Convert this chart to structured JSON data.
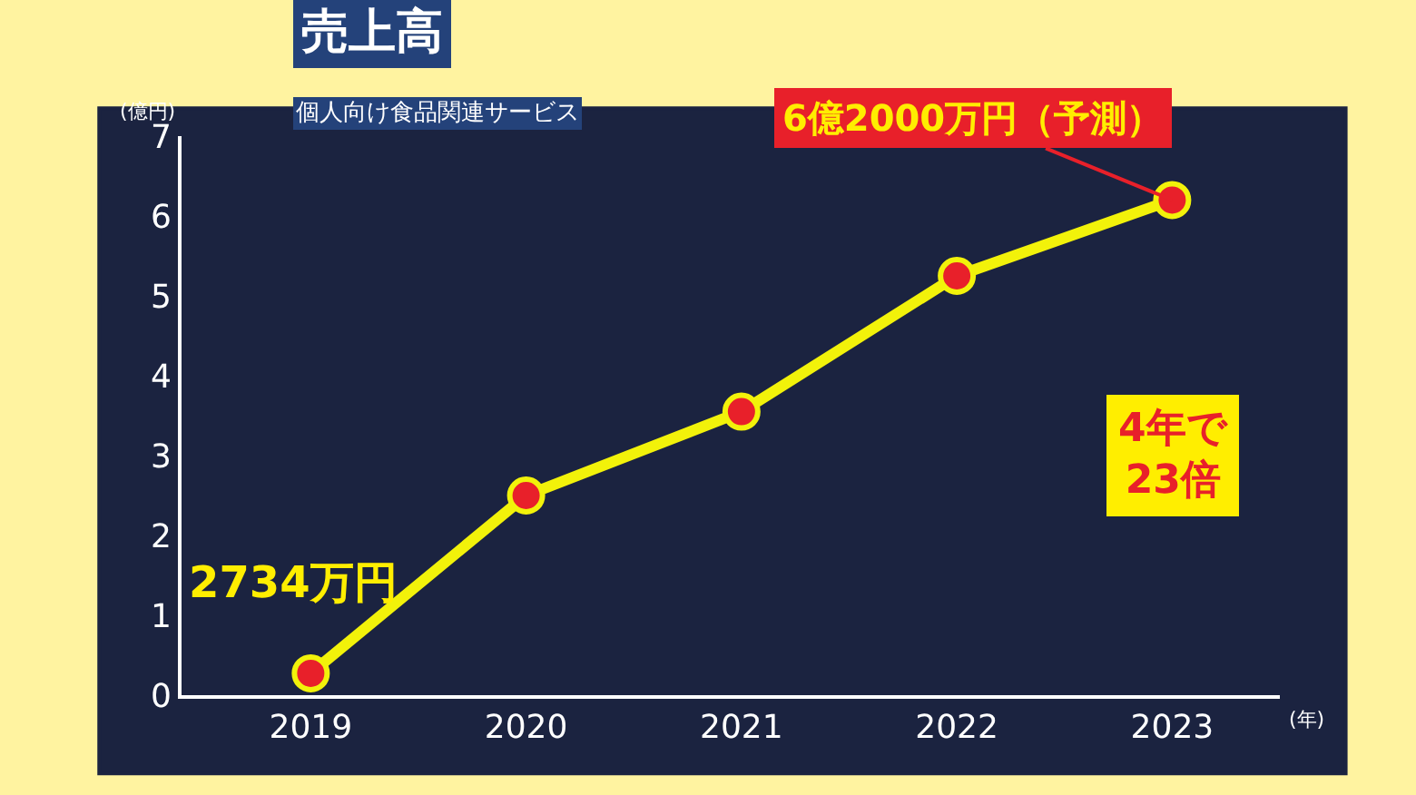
{
  "chart_data": {
    "type": "line",
    "title": "売上高",
    "subtitle": "個人向け食品関連サービス",
    "ylabel": "(億円)",
    "xlabel": "(年)",
    "categories": [
      "2019",
      "2020",
      "2021",
      "2022",
      "2023"
    ],
    "series": [
      {
        "color": "#f2f20a",
        "values": [
          0.2734,
          2.5,
          3.55,
          5.25,
          6.2
        ]
      }
    ],
    "ylim": [
      0,
      7
    ],
    "yticks": [
      0,
      1,
      2,
      3,
      4,
      5,
      6,
      7
    ],
    "grid": false,
    "legend": false,
    "marker": "circle",
    "line_style": "solid",
    "annotations": [
      {
        "text": "2734万円",
        "x": "2019",
        "y": 0.2734
      },
      {
        "text": "6億2000万円（予測）",
        "x": "2023",
        "y": 6.2
      },
      "4年で\n23倍"
    ]
  }
}
